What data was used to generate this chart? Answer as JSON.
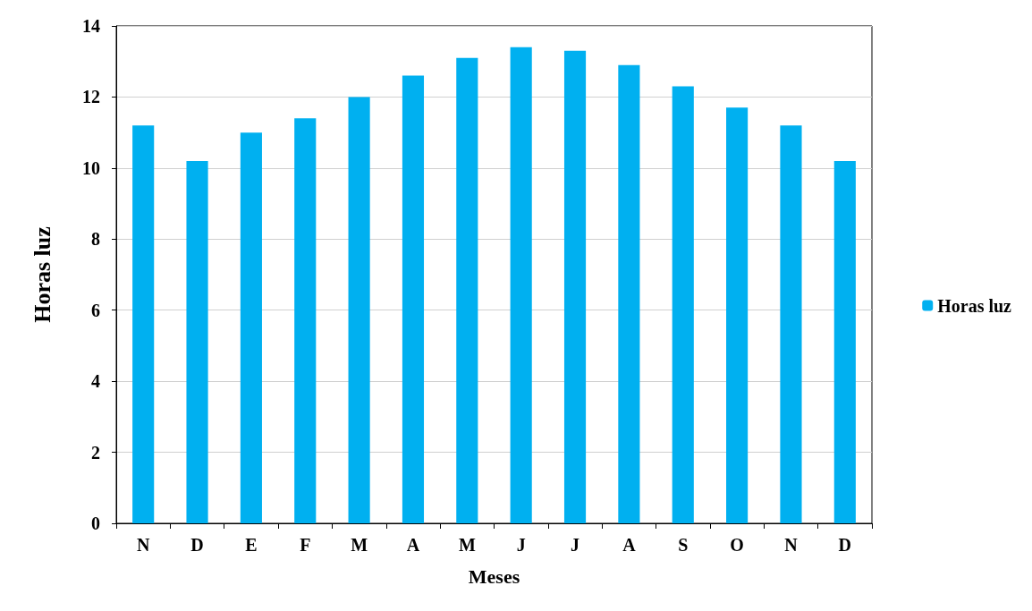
{
  "chart_data": {
    "type": "bar",
    "xlabel": "Meses",
    "ylabel": "Horas luz",
    "categories": [
      "N",
      "D",
      "E",
      "F",
      "M",
      "A",
      "M",
      "J",
      "J",
      "A",
      "S",
      "O",
      "N",
      "D"
    ],
    "series": [
      {
        "name": "Horas luz",
        "color": "#00b0f0",
        "values": [
          11.2,
          10.2,
          11.0,
          11.4,
          12.0,
          12.6,
          13.1,
          13.4,
          13.3,
          12.9,
          12.3,
          11.7,
          11.2,
          10.2
        ]
      }
    ],
    "ylim": [
      0,
      14
    ],
    "yticks": [
      0,
      2,
      4,
      6,
      8,
      10,
      12,
      14
    ],
    "grid": "y",
    "legend": "right"
  }
}
